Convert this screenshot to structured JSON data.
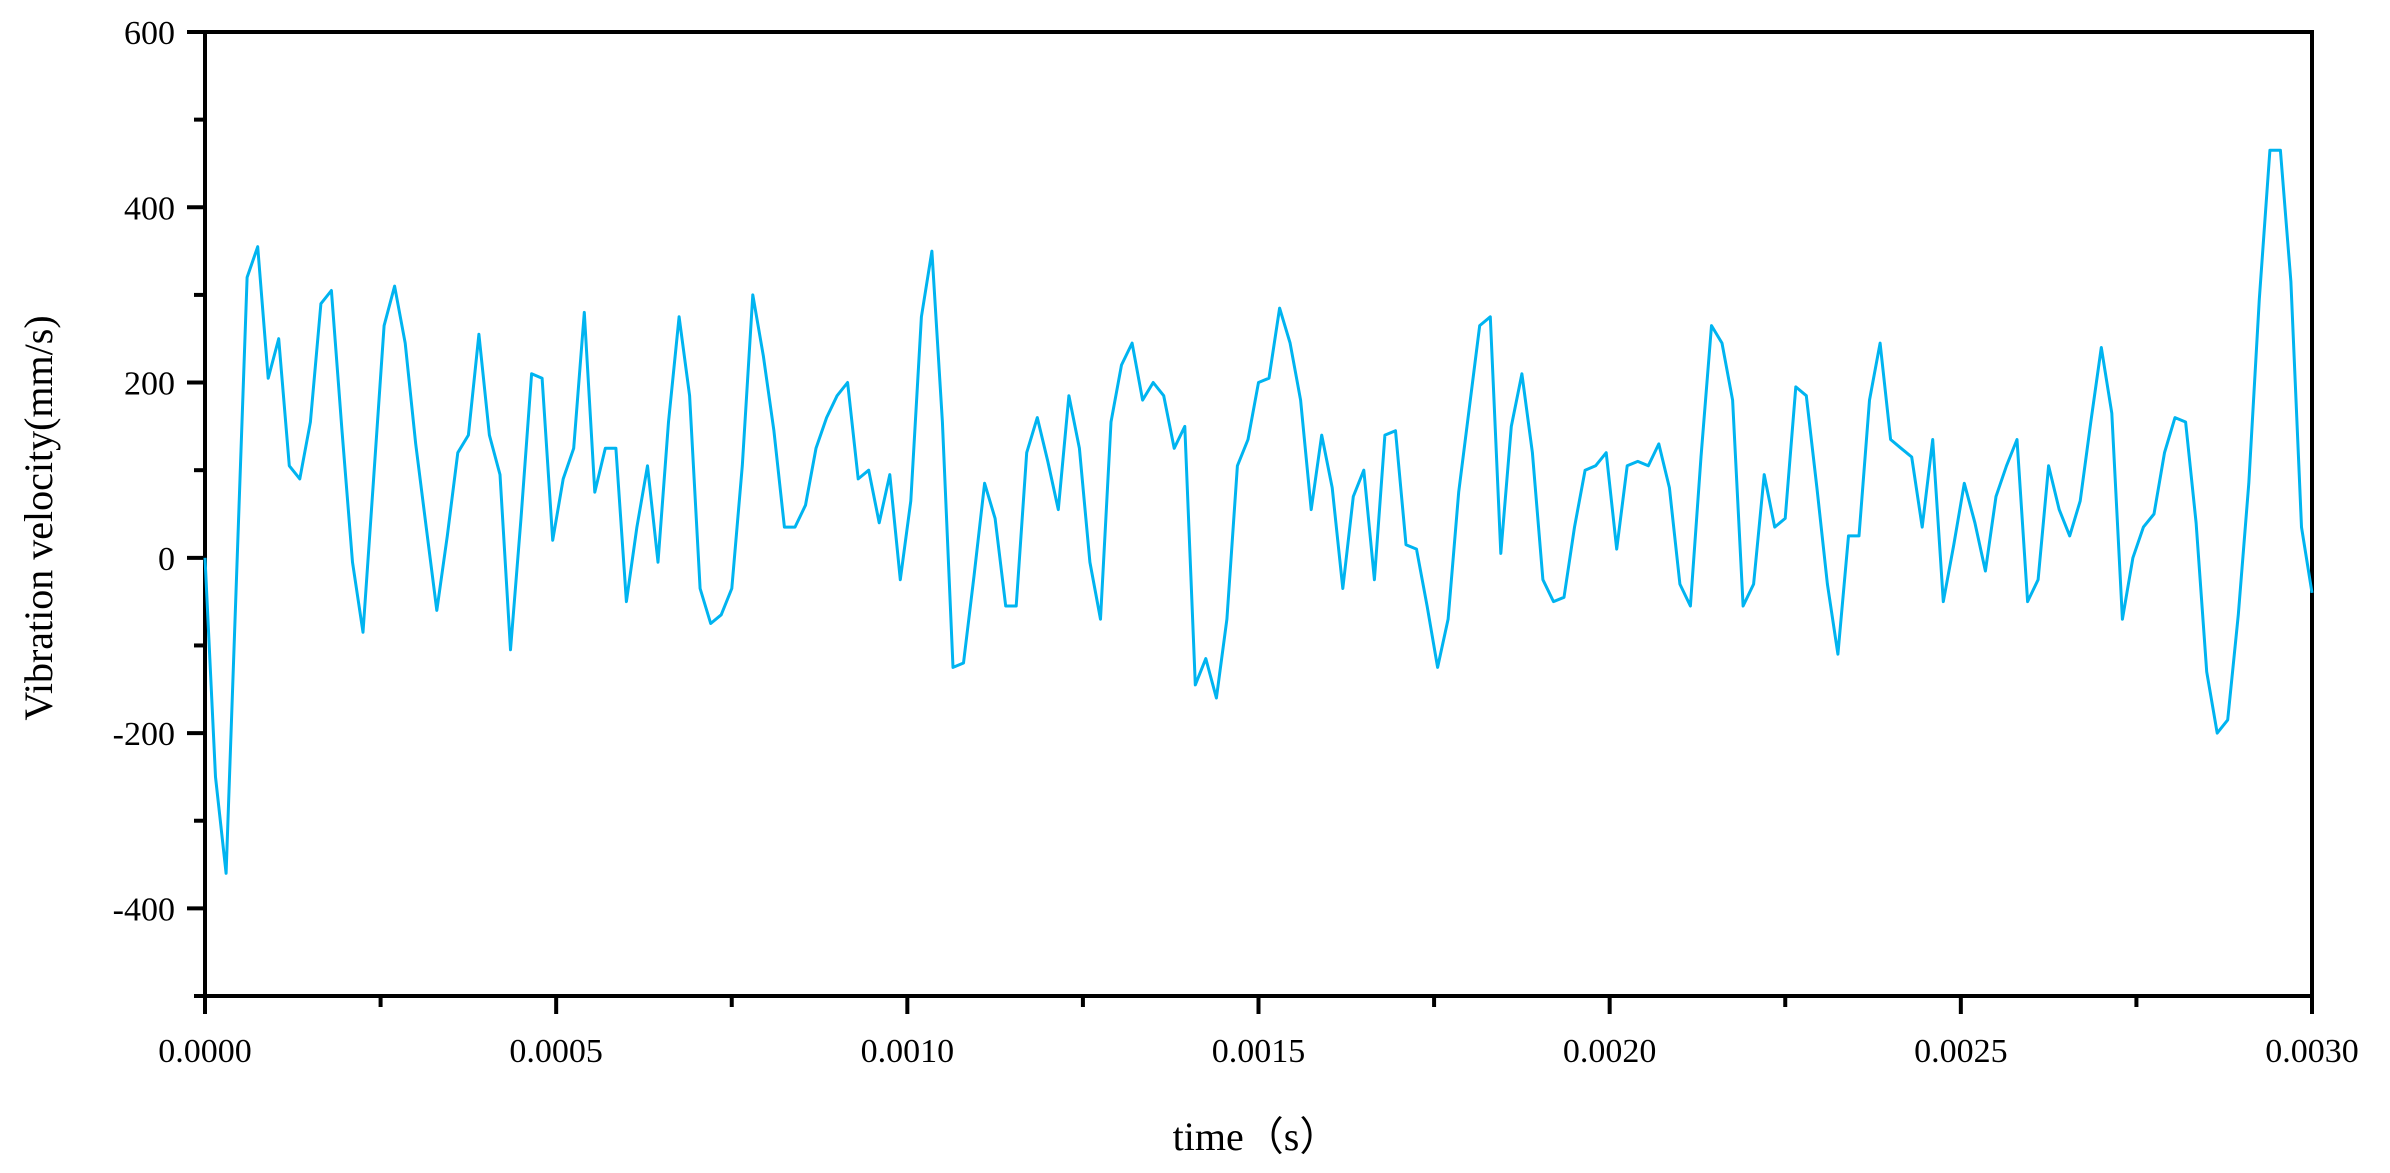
{
  "chart_data": {
    "type": "line",
    "title": "",
    "xlabel": "time（s）",
    "ylabel": "Vibration velocity(mm/s)",
    "xlim": [
      0,
      0.003
    ],
    "ylim": [
      -500,
      600
    ],
    "xticks": [
      "0.0000",
      "0.0005",
      "0.0010",
      "0.0015",
      "0.0020",
      "0.0025",
      "0.0030"
    ],
    "yticks": [
      "-400",
      "-200",
      "0",
      "200",
      "400",
      "600"
    ],
    "grid": false,
    "legend": "none",
    "line_color": "#00b4f0",
    "series": [
      {
        "x": [
          0,
          1.5e-05,
          3e-05,
          6e-05,
          7.5e-05,
          9e-05,
          0.000105,
          0.00012,
          0.000135,
          0.00015,
          0.000165,
          0.00018,
          0.000195,
          0.00021,
          0.000225,
          0.00024,
          0.000255,
          0.00027,
          0.000285,
          0.0003,
          0.000315,
          0.00033,
          0.000345,
          0.00036,
          0.000375,
          0.00039,
          0.000405,
          0.00042,
          0.000435,
          0.00045,
          0.000465,
          0.00048,
          0.000495,
          0.00051,
          0.000525,
          0.00054,
          0.000555,
          0.00057,
          0.000585,
          0.0006,
          0.000615,
          0.00063,
          0.000645,
          0.00066,
          0.000675,
          0.00069,
          0.000705,
          0.00072,
          0.000735,
          0.00075,
          0.000765,
          0.00078,
          0.000795,
          0.00081,
          0.000825,
          0.00084,
          0.000855,
          0.00087,
          0.000885,
          0.0009,
          0.000915,
          0.00093,
          0.000945,
          0.00096,
          0.000975,
          0.00099,
          0.001005,
          0.00102,
          0.001035,
          0.00105,
          0.001065,
          0.00108,
          0.001095,
          0.00111,
          0.001125,
          0.00114,
          0.001155,
          0.00117,
          0.001185,
          0.0012,
          0.001215,
          0.00123,
          0.001245,
          0.00126,
          0.001275,
          0.00129,
          0.001305,
          0.00132,
          0.001335,
          0.00135,
          0.001365,
          0.00138,
          0.001395,
          0.00141,
          0.001425,
          0.00144,
          0.001455,
          0.00147,
          0.001485,
          0.0015,
          0.001515,
          0.00153,
          0.001545,
          0.00156,
          0.001575,
          0.00159,
          0.001605,
          0.00162,
          0.001635,
          0.00165,
          0.001665,
          0.00168,
          0.001695,
          0.00171,
          0.001725,
          0.00174,
          0.001755,
          0.00177,
          0.001785,
          0.0018,
          0.001815,
          0.00183,
          0.001845,
          0.00186,
          0.001875,
          0.00189,
          0.001905,
          0.00192,
          0.001935,
          0.00195,
          0.001965,
          0.00198,
          0.001995,
          0.00201,
          0.002025,
          0.00204,
          0.002055,
          0.00207,
          0.002085,
          0.0021,
          0.002115,
          0.00213,
          0.002145,
          0.00216,
          0.002175,
          0.00219,
          0.002205,
          0.00222,
          0.002235,
          0.00225,
          0.002265,
          0.00228,
          0.002295,
          0.00231,
          0.002325,
          0.00234,
          0.002355,
          0.00237,
          0.002385,
          0.0024,
          0.002415,
          0.00243,
          0.002445,
          0.00246,
          0.002475,
          0.00249,
          0.002505,
          0.00252,
          0.002535,
          0.00255,
          0.002565,
          0.00258,
          0.002595,
          0.00261,
          0.002625,
          0.00264,
          0.002655,
          0.00267,
          0.002685,
          0.0027,
          0.002715,
          0.00273,
          0.002745,
          0.00276,
          0.002775,
          0.00279,
          0.002805,
          0.00282,
          0.002835,
          0.00285,
          0.002865,
          0.00288,
          0.002895,
          0.00291,
          0.002925,
          0.00294,
          0.002955,
          0.00297,
          0.002985,
          0.003
        ],
        "y": [
          0,
          -250,
          -360,
          320,
          355,
          205,
          250,
          105,
          90,
          155,
          290,
          305,
          145,
          -5,
          -85,
          90,
          265,
          310,
          245,
          130,
          35,
          -60,
          25,
          120,
          140,
          255,
          140,
          95,
          -105,
          45,
          210,
          205,
          20,
          90,
          125,
          280,
          75,
          125,
          125,
          -50,
          35,
          105,
          -5,
          155,
          275,
          185,
          -35,
          -75,
          -65,
          -35,
          105,
          300,
          230,
          145,
          35,
          35,
          60,
          125,
          160,
          185,
          200,
          90,
          100,
          40,
          95,
          -25,
          65,
          275,
          350,
          155,
          -125,
          -120,
          -20,
          85,
          45,
          -55,
          -55,
          120,
          160,
          110,
          55,
          185,
          125,
          -5,
          -70,
          155,
          220,
          245,
          180,
          200,
          185,
          125,
          150,
          -145,
          -115,
          -160,
          -70,
          105,
          135,
          200,
          205,
          285,
          245,
          180,
          55,
          140,
          80,
          -35,
          70,
          100,
          -25,
          140,
          145,
          15,
          10,
          -55,
          -125,
          -70,
          75,
          170,
          265,
          275,
          5,
          150,
          210,
          120,
          -25,
          -50,
          -45,
          35,
          100,
          105,
          120,
          10,
          105,
          110,
          105,
          130,
          80,
          -30,
          -55,
          115,
          265,
          245,
          180,
          -55,
          -30,
          95,
          35,
          45,
          195,
          185,
          80,
          -30,
          -110,
          25,
          25,
          180,
          245,
          135,
          125,
          115,
          35,
          135,
          -50,
          15,
          85,
          40,
          -15,
          70,
          105,
          135,
          -50,
          -25,
          105,
          55,
          25,
          65,
          155,
          240,
          165,
          -70,
          0,
          35,
          50,
          120,
          160,
          155,
          40,
          -130,
          -200,
          -185,
          -65,
          85,
          295,
          465,
          465,
          315,
          35,
          -40
        ]
      }
    ]
  }
}
